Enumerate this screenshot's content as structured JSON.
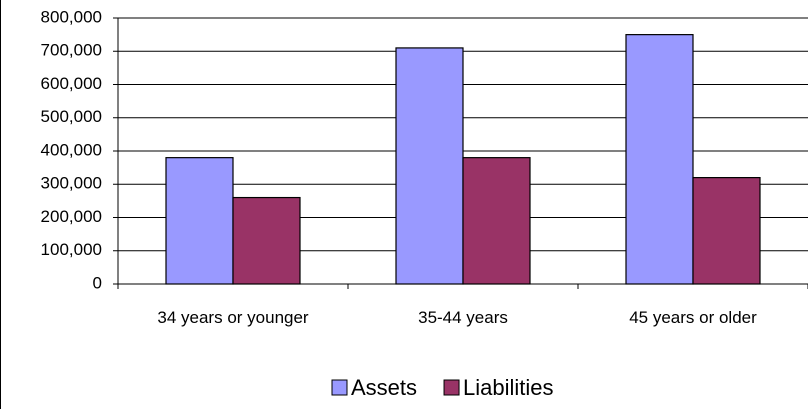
{
  "chart_data": {
    "type": "bar",
    "categories": [
      "34 years or younger",
      "35-44 years",
      "45 years or older"
    ],
    "series": [
      {
        "name": "Assets",
        "color": "#9999ff",
        "values": [
          380000,
          710000,
          750000
        ]
      },
      {
        "name": "Liabilities",
        "color": "#993366",
        "values": [
          260000,
          380000,
          320000
        ]
      }
    ],
    "ylim": [
      0,
      800000
    ],
    "yticks": [
      {
        "value": 0,
        "label": "0"
      },
      {
        "value": 100000,
        "label": "100,000"
      },
      {
        "value": 200000,
        "label": "200,000"
      },
      {
        "value": 300000,
        "label": "300,000"
      },
      {
        "value": 400000,
        "label": "400,000"
      },
      {
        "value": 500000,
        "label": "500,000"
      },
      {
        "value": 600000,
        "label": "600,000"
      },
      {
        "value": 700000,
        "label": "700,000"
      },
      {
        "value": 800000,
        "label": "800,000"
      }
    ],
    "grid": true,
    "legend": "bottom"
  }
}
